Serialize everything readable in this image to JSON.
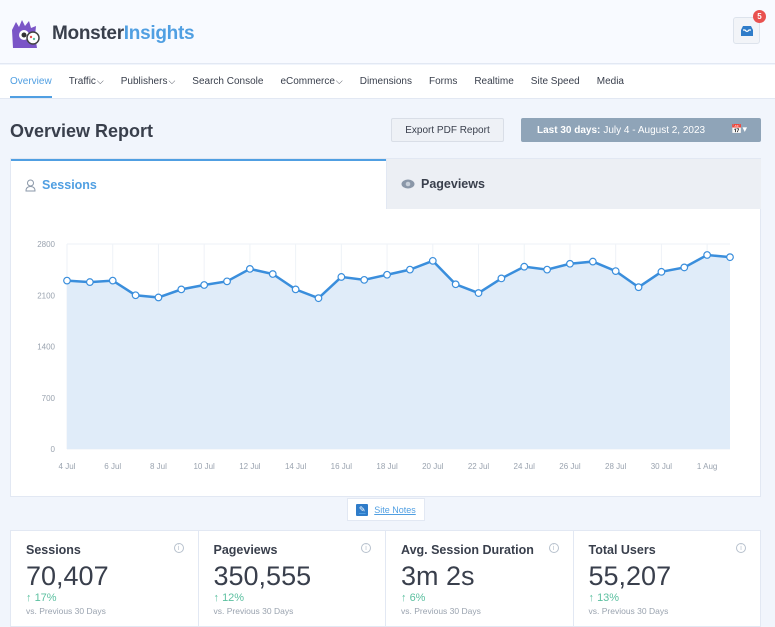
{
  "header": {
    "brand_part1": "Monster",
    "brand_part2": "Insights",
    "notification_count": "5"
  },
  "nav": {
    "items": [
      {
        "label": "Overview",
        "active": true,
        "dropdown": false
      },
      {
        "label": "Traffic",
        "dropdown": true
      },
      {
        "label": "Publishers",
        "dropdown": true
      },
      {
        "label": "Search Console",
        "dropdown": false
      },
      {
        "label": "eCommerce",
        "dropdown": true
      },
      {
        "label": "Dimensions",
        "dropdown": false
      },
      {
        "label": "Forms",
        "dropdown": false
      },
      {
        "label": "Realtime",
        "dropdown": false
      },
      {
        "label": "Site Speed",
        "dropdown": false
      },
      {
        "label": "Media",
        "dropdown": false
      }
    ]
  },
  "page": {
    "title": "Overview Report",
    "export_label": "Export PDF Report",
    "date_prefix": "Last 30 days:",
    "date_range": "July 4 - August 2, 2023"
  },
  "tabs": {
    "sessions": "Sessions",
    "pageviews": "Pageviews"
  },
  "colors": {
    "accent": "#509fe2",
    "line": "#3a8edc",
    "fill": "#deebf9",
    "positive": "#5cc0a0"
  },
  "chart_data": {
    "type": "area",
    "x": [
      "4 Jul",
      "5 Jul",
      "6 Jul",
      "7 Jul",
      "8 Jul",
      "9 Jul",
      "10 Jul",
      "11 Jul",
      "12 Jul",
      "13 Jul",
      "14 Jul",
      "15 Jul",
      "16 Jul",
      "17 Jul",
      "18 Jul",
      "19 Jul",
      "20 Jul",
      "21 Jul",
      "22 Jul",
      "23 Jul",
      "24 Jul",
      "25 Jul",
      "26 Jul",
      "27 Jul",
      "28 Jul",
      "29 Jul",
      "30 Jul",
      "31 Jul",
      "1 Aug",
      "2 Aug"
    ],
    "x_tick_labels": [
      "4 Jul",
      "6 Jul",
      "8 Jul",
      "10 Jul",
      "12 Jul",
      "14 Jul",
      "16 Jul",
      "18 Jul",
      "20 Jul",
      "22 Jul",
      "24 Jul",
      "26 Jul",
      "28 Jul",
      "30 Jul",
      "1 Aug"
    ],
    "series": [
      {
        "values": [
          2300,
          2280,
          2300,
          2100,
          2070,
          2180,
          2240,
          2290,
          2460,
          2390,
          2180,
          2060,
          2350,
          2310,
          2380,
          2450,
          2570,
          2250,
          2130,
          2330,
          2490,
          2450,
          2530,
          2560,
          2430,
          2210,
          2420,
          2480,
          2650,
          2620
        ]
      }
    ],
    "y_ticks": [
      0,
      700,
      1400,
      2100,
      2800
    ],
    "ylim": [
      0,
      2800
    ],
    "grid": true
  },
  "site_notes": "Site Notes",
  "stats": [
    {
      "label": "Sessions",
      "value": "70,407",
      "change": "17%",
      "sub": "vs. Previous 30 Days"
    },
    {
      "label": "Pageviews",
      "value": "350,555",
      "change": "12%",
      "sub": "vs. Previous 30 Days"
    },
    {
      "label": "Avg. Session Duration",
      "value": "3m 2s",
      "change": "6%",
      "sub": "vs. Previous 30 Days"
    },
    {
      "label": "Total Users",
      "value": "55,207",
      "change": "13%",
      "sub": "vs. Previous 30 Days"
    }
  ]
}
